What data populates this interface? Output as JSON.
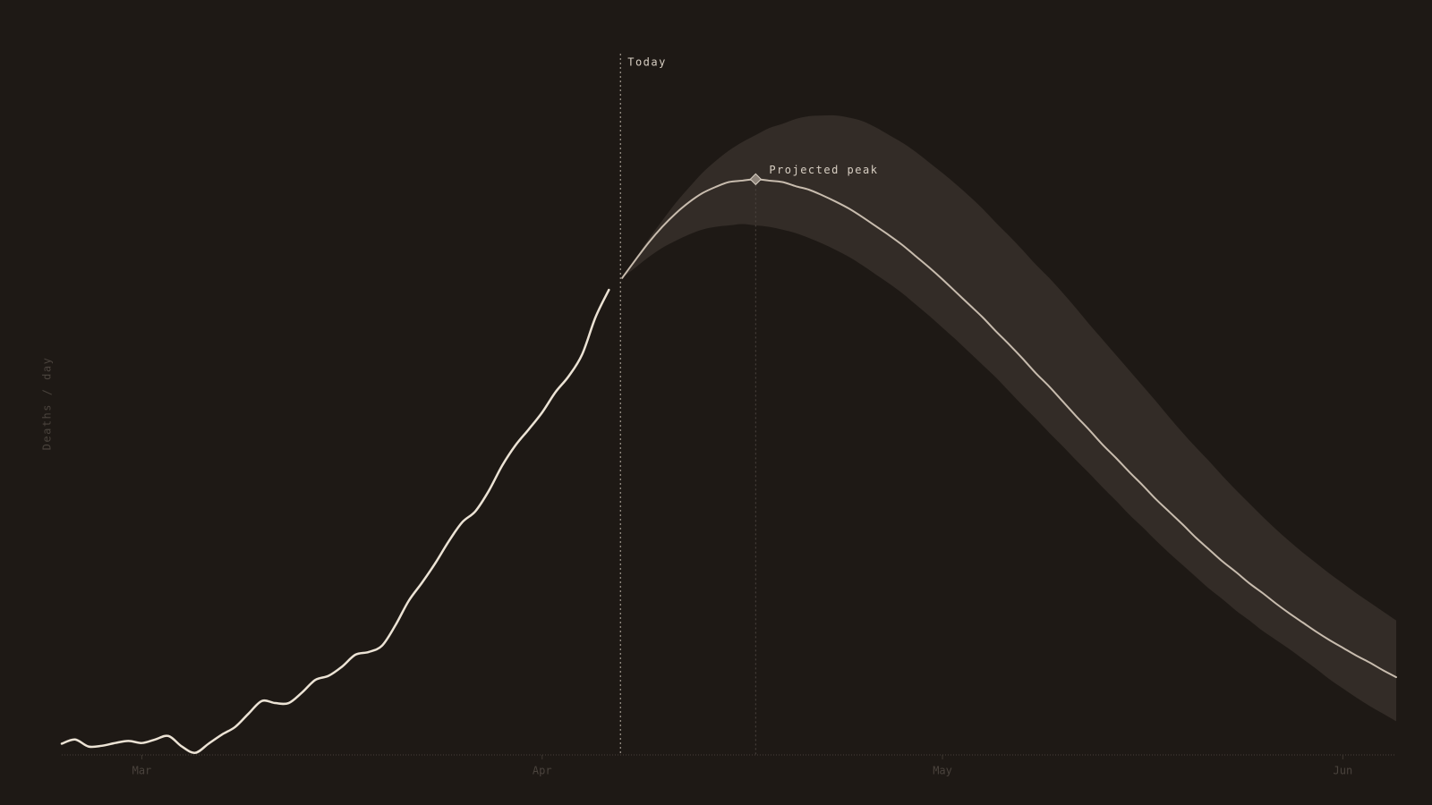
{
  "chart_data": {
    "type": "line",
    "y_label": "Deaths / day",
    "today_label": "Today",
    "peak_label": "Projected peak",
    "categories": [
      null,
      null,
      null,
      null,
      null,
      null,
      "Mar",
      null,
      null,
      null,
      null,
      null,
      null,
      null,
      null,
      null,
      null,
      null,
      null,
      null,
      null,
      null,
      null,
      null,
      null,
      null,
      null,
      null,
      null,
      null,
      null,
      null,
      null,
      null,
      null,
      null,
      "Apr",
      null,
      null,
      null,
      null,
      null,
      null,
      null,
      null,
      null,
      null,
      null,
      null,
      null,
      null,
      null,
      null,
      null,
      null,
      null,
      null,
      null,
      null,
      null,
      null,
      null,
      null,
      null,
      null,
      null,
      "May",
      null,
      null,
      null,
      null,
      null,
      null,
      null,
      null,
      null,
      null,
      null,
      null,
      null,
      null,
      null,
      null,
      null,
      null,
      null,
      null,
      null,
      null,
      null,
      null,
      null,
      null,
      null,
      null,
      null,
      "Jun",
      null,
      null,
      null,
      null
    ],
    "ylim": [
      0,
      100
    ],
    "series": [
      {
        "color": "#ece3d5",
        "values": [
          1.6,
          2.2,
          1.2,
          1.3,
          1.7,
          2.0,
          1.7,
          2.2,
          2.7,
          1.2,
          0.3,
          1.6,
          2.9,
          4.0,
          5.9,
          7.7,
          7.4,
          7.4,
          8.9,
          10.7,
          11.3,
          12.6,
          14.3,
          14.7,
          15.6,
          18.5,
          22.0,
          24.6,
          27.4,
          30.5,
          33.2,
          34.8,
          37.7,
          41.3,
          44.2,
          46.5,
          48.9,
          51.8,
          54.1,
          57.2,
          62.5,
          66.4,
          null,
          null,
          null,
          null,
          null,
          null,
          null,
          null,
          null,
          null,
          null,
          null,
          null,
          null,
          null,
          null,
          null,
          null,
          null,
          null,
          null,
          null,
          null,
          null,
          null,
          null,
          null,
          null,
          null,
          null,
          null,
          null,
          null,
          null,
          null,
          null,
          null,
          null,
          null,
          null,
          null,
          null,
          null,
          null,
          null,
          null,
          null,
          null,
          null,
          null,
          null,
          null,
          null,
          null,
          null,
          null,
          null,
          null,
          null
        ]
      },
      {
        "color": "#c8bcae",
        "values": [
          null,
          null,
          null,
          null,
          null,
          null,
          null,
          null,
          null,
          null,
          null,
          null,
          null,
          null,
          null,
          null,
          null,
          null,
          null,
          null,
          null,
          null,
          null,
          null,
          null,
          null,
          null,
          null,
          null,
          null,
          null,
          null,
          null,
          null,
          null,
          null,
          null,
          null,
          null,
          null,
          null,
          null,
          68.1,
          70.7,
          73.2,
          75.4,
          77.3,
          78.9,
          80.2,
          81.1,
          81.8,
          82.0,
          82.2,
          82.0,
          81.8,
          81.2,
          80.7,
          79.9,
          79.0,
          78.0,
          76.8,
          75.5,
          74.2,
          72.8,
          71.2,
          69.6,
          67.9,
          66.1,
          64.3,
          62.5,
          60.5,
          58.6,
          56.6,
          54.5,
          52.6,
          50.5,
          48.4,
          46.4,
          44.3,
          42.4,
          40.4,
          38.5,
          36.5,
          34.7,
          32.9,
          31.0,
          29.3,
          27.6,
          26.1,
          24.5,
          23.1,
          21.6,
          20.2,
          18.9,
          17.6,
          16.4,
          15.3,
          14.2,
          13.2,
          12.1,
          11.1
        ]
      }
    ],
    "band": {
      "color": "#332c27",
      "upper": [
        null,
        null,
        null,
        null,
        null,
        null,
        null,
        null,
        null,
        null,
        null,
        null,
        null,
        null,
        null,
        null,
        null,
        null,
        null,
        null,
        null,
        null,
        null,
        null,
        null,
        null,
        null,
        null,
        null,
        null,
        null,
        null,
        null,
        null,
        null,
        null,
        null,
        null,
        null,
        null,
        null,
        null,
        68.1,
        70.9,
        73.7,
        76.3,
        78.8,
        81.0,
        83.1,
        84.8,
        86.3,
        87.5,
        88.5,
        89.5,
        90.1,
        90.8,
        91.2,
        91.3,
        91.3,
        91.0,
        90.5,
        89.6,
        88.5,
        87.4,
        86.1,
        84.6,
        83.1,
        81.5,
        79.8,
        78.0,
        76.0,
        74.1,
        72.1,
        70.0,
        68.1,
        66.0,
        63.8,
        61.5,
        59.3,
        57.1,
        54.9,
        52.7,
        50.5,
        48.2,
        46.0,
        43.9,
        41.9,
        39.8,
        37.8,
        35.9,
        34.0,
        32.2,
        30.5,
        28.9,
        27.4,
        25.9,
        24.5,
        23.1,
        21.8,
        20.5,
        19.2
      ],
      "lower": [
        null,
        null,
        null,
        null,
        null,
        null,
        null,
        null,
        null,
        null,
        null,
        null,
        null,
        null,
        null,
        null,
        null,
        null,
        null,
        null,
        null,
        null,
        null,
        null,
        null,
        null,
        null,
        null,
        null,
        null,
        null,
        null,
        null,
        null,
        null,
        null,
        null,
        null,
        null,
        null,
        null,
        null,
        68.1,
        69.6,
        71.1,
        72.4,
        73.4,
        74.3,
        75.0,
        75.4,
        75.6,
        75.8,
        75.6,
        75.4,
        75.0,
        74.5,
        73.8,
        73.0,
        72.1,
        71.1,
        69.9,
        68.6,
        67.3,
        65.9,
        64.3,
        62.7,
        61.0,
        59.3,
        57.5,
        55.7,
        53.9,
        51.9,
        49.9,
        48.0,
        46.0,
        44.1,
        42.1,
        40.2,
        38.2,
        36.3,
        34.3,
        32.5,
        30.6,
        28.8,
        27.1,
        25.4,
        23.7,
        22.2,
        20.6,
        19.2,
        17.7,
        16.4,
        15.1,
        13.7,
        12.3,
        10.8,
        9.5,
        8.2,
        7.0,
        5.9,
        4.8
      ]
    }
  }
}
